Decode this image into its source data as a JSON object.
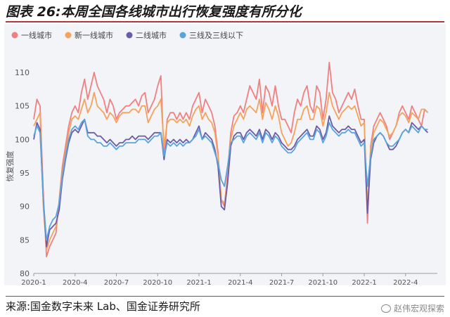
{
  "title": "图表 26:本周全国各线城市出行恢复强度有所分化",
  "source": "来源:国金数字未来 Lab、国金证券研究所",
  "watermark": "赵伟宏观探索",
  "chart_data": {
    "type": "line",
    "ylabel": "恢复强度",
    "ylim": [
      80,
      112
    ],
    "yticks": [
      80,
      85,
      90,
      95,
      100,
      105,
      110
    ],
    "xlim": [
      0,
      127
    ],
    "xticks": [
      {
        "x": 0,
        "label": "2020-1"
      },
      {
        "x": 13,
        "label": "2020-4"
      },
      {
        "x": 26,
        "label": "2020-7"
      },
      {
        "x": 39,
        "label": "2020-10"
      },
      {
        "x": 52,
        "label": "2021-1"
      },
      {
        "x": 65,
        "label": "2021-4"
      },
      {
        "x": 78,
        "label": "2021-7"
      },
      {
        "x": 91,
        "label": "2021-10"
      },
      {
        "x": 104,
        "label": "2022-1"
      },
      {
        "x": 117,
        "label": "2022-4"
      }
    ],
    "grid": false,
    "legend": "top-left",
    "series": [
      {
        "name": "一线城市",
        "color": "#f08080",
        "values": [
          103,
          106,
          105,
          92,
          82.5,
          84,
          85,
          86,
          91,
          96,
          99,
          102,
          104,
          105,
          104,
          107,
          109,
          106,
          108,
          110,
          108,
          107,
          106,
          104,
          106,
          105,
          103,
          104,
          104.5,
          105,
          105,
          105.5,
          106,
          105,
          106.5,
          107,
          104,
          105,
          106,
          108,
          109.5,
          97,
          103,
          104,
          104,
          103,
          104,
          103,
          104,
          103,
          105,
          106,
          107,
          104,
          106,
          105,
          104,
          102,
          98,
          91,
          90,
          95,
          101,
          103.5,
          104,
          105,
          104,
          106,
          108,
          107,
          106,
          109,
          104,
          108,
          107,
          105,
          108,
          105,
          103,
          103,
          102,
          101,
          104,
          106,
          105,
          107,
          108,
          105,
          104,
          108,
          107,
          103,
          106,
          111.5,
          107,
          106,
          104,
          105,
          106,
          107,
          106,
          107.5,
          105,
          103,
          103,
          87.5,
          99,
          102,
          103,
          104,
          103,
          102,
          100,
          101,
          102,
          104,
          105,
          104,
          103,
          105,
          104,
          103,
          102,
          104.5,
          104
        ]
      },
      {
        "name": "新一线城市",
        "color": "#f3a35c",
        "values": [
          102,
          103,
          104,
          90,
          83.5,
          85,
          86,
          87,
          90,
          95,
          98,
          101,
          103,
          103.5,
          103,
          104.5,
          106,
          104,
          105,
          107,
          105,
          104.5,
          104,
          103,
          104,
          103.5,
          102.5,
          103.5,
          104,
          104,
          104,
          104.5,
          104.5,
          104,
          105,
          105,
          102.5,
          103.5,
          104.5,
          105,
          106,
          99,
          102.5,
          103,
          103,
          102.5,
          103,
          102.5,
          103,
          102,
          103.5,
          104.5,
          105,
          103,
          104,
          103,
          102.5,
          101,
          97.5,
          91,
          90.5,
          94,
          100,
          102,
          103,
          104,
          103,
          104.5,
          105,
          104.5,
          104,
          106,
          103,
          105.5,
          104.5,
          103,
          105,
          103.5,
          101,
          100,
          99,
          99.5,
          101,
          103,
          103,
          104.5,
          105,
          103,
          103,
          105,
          104.5,
          102,
          104,
          107,
          105,
          104,
          103,
          104,
          104.5,
          105,
          104.5,
          105,
          103.5,
          102,
          102.5,
          90,
          98.5,
          101,
          102,
          103,
          102.5,
          101.5,
          100.5,
          101,
          102,
          103.5,
          104,
          103.5,
          102.5,
          104,
          103.5,
          103,
          104.5,
          104.5,
          104
        ]
      },
      {
        "name": "二线城市",
        "color": "#6a5ca8",
        "values": [
          100,
          102.5,
          101.5,
          91,
          84,
          86.5,
          87,
          87.5,
          89.5,
          94,
          97,
          99.5,
          101,
          101.5,
          101,
          102,
          103,
          101,
          101,
          101,
          100.5,
          100.5,
          100,
          99.5,
          100,
          99.5,
          99,
          99.5,
          99.5,
          100,
          100,
          100.5,
          100,
          100.5,
          100.5,
          100.5,
          100,
          100.5,
          101,
          101,
          101,
          97,
          100,
          99.5,
          100,
          99.5,
          100,
          99.5,
          100,
          99.5,
          100,
          101,
          102,
          100,
          101,
          100.5,
          100,
          98.5,
          96,
          90,
          89.5,
          93.5,
          99,
          100.5,
          101,
          101,
          100,
          101,
          101.5,
          101,
          100.5,
          101.5,
          100,
          101.5,
          101,
          100,
          101,
          100.5,
          99.5,
          99,
          98.5,
          98.5,
          99,
          100,
          100.5,
          101,
          101.5,
          100.5,
          100.5,
          102,
          101.5,
          100,
          101,
          103.5,
          102,
          101.5,
          101,
          101.5,
          101.5,
          102,
          101.5,
          101.5,
          100.5,
          99.5,
          100,
          89,
          97,
          99.5,
          100.5,
          101,
          100.5,
          99.5,
          98.5,
          98.5,
          99,
          100,
          101,
          101.5,
          101,
          102.5,
          102,
          101.5,
          102,
          101.5,
          101
        ]
      },
      {
        "name": "三线及三线以下",
        "color": "#5aa4dc",
        "values": [
          100.5,
          102,
          101,
          91,
          85,
          87,
          88,
          88.5,
          90.5,
          94.5,
          97.5,
          100,
          101.5,
          102,
          101.5,
          102.5,
          103,
          100.5,
          100,
          100,
          99.5,
          99.5,
          99,
          99,
          99.5,
          99,
          98.5,
          99,
          99,
          99.5,
          99.5,
          99.5,
          99.5,
          100,
          100,
          100,
          99.5,
          100,
          100.5,
          100.5,
          101,
          97.5,
          99.5,
          99,
          99.5,
          99,
          99.5,
          99,
          99.5,
          99.5,
          100,
          100.5,
          101.5,
          100,
          100.5,
          100,
          99.5,
          98,
          96.5,
          94,
          93,
          96,
          99.5,
          100,
          100.5,
          100.5,
          99.5,
          100.5,
          101,
          100.5,
          100,
          101,
          99.5,
          101,
          100.5,
          99.5,
          100.5,
          100,
          99,
          98.5,
          98,
          98,
          98.5,
          99.5,
          100,
          100.5,
          101,
          100,
          100,
          101.5,
          101,
          99.5,
          100.5,
          102.5,
          101.5,
          101,
          100.5,
          101,
          101,
          101.5,
          101,
          101,
          100,
          99,
          99.5,
          93,
          97.5,
          100,
          100.5,
          101,
          100.5,
          99.5,
          99,
          99,
          99.5,
          100,
          101,
          101.5,
          101,
          102,
          101.5,
          101,
          102,
          101.5,
          101.5
        ]
      }
    ]
  }
}
